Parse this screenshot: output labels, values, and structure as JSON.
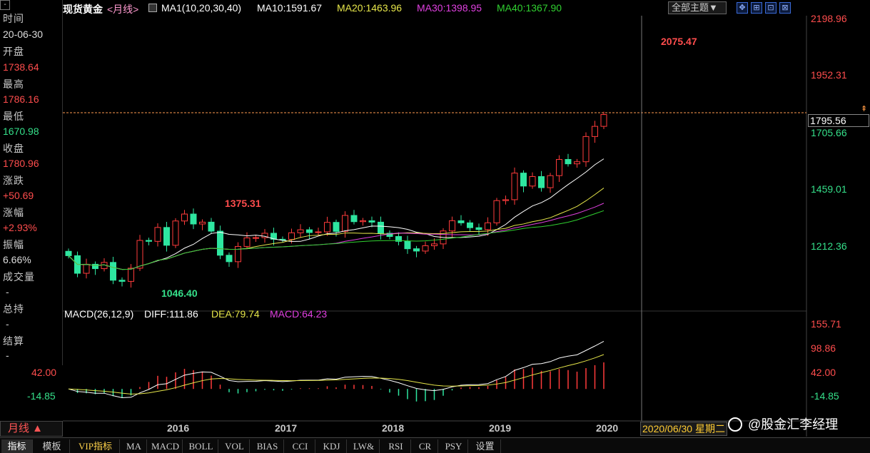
{
  "info_panel": {
    "minimize_glyph": "-",
    "time_label": "时间",
    "date": "20-06-30",
    "open_label": "开盘",
    "open": "1738.64",
    "high_label": "最高",
    "high": "1786.16",
    "low_label": "最低",
    "low": "1670.98",
    "close_label": "收盘",
    "close": "1780.96",
    "change_label": "涨跌",
    "change": "+50.69",
    "pct_label": "涨幅",
    "pct": "+2.93%",
    "amp_label": "振幅",
    "amp": "6.66%",
    "volume_label": "成交量",
    "volume": "-",
    "oi_label": "总持",
    "oi": "-",
    "settle_label": "结算",
    "settle": "-"
  },
  "header": {
    "symbol": "现货黄金",
    "period": "<月线>",
    "ma_params": "MA1(10,20,30,40)",
    "ma10": "MA10:1591.67",
    "ma20": "MA20:1463.96",
    "ma30": "MA30:1398.95",
    "ma40": "MA40:1367.90",
    "theme": "全部主题▼",
    "tools": [
      "✥",
      "⊞",
      "⊡",
      "⊠"
    ]
  },
  "price_axis": {
    "labels": [
      "2198.96",
      "1952.31",
      "1459.01",
      "1212.36"
    ],
    "current": "1795.56",
    "ma_hint": "1705.66"
  },
  "annotations": {
    "high_mark": "2075.47",
    "mid_mark": "1375.31",
    "low_mark": "1046.40"
  },
  "macd": {
    "header": "MACD(26,12,9)",
    "diff": "DIFF:111.86",
    "dea": "DEA:79.74",
    "macd": "MACD:64.23",
    "right_labels": [
      "155.71",
      "98.86",
      "42.00",
      "-14.85"
    ],
    "left_labels": [
      "42.00",
      "-14.85"
    ]
  },
  "years": [
    "2016",
    "2017",
    "2018",
    "2019",
    "2020"
  ],
  "date_tag": "2020/06/30 星期二",
  "period_button": "月线 ▲",
  "watermark": "@股金汇李经理",
  "tabs": [
    "指标",
    "模板",
    "VIP指标",
    "MA",
    "MACD",
    "BOLL",
    "VOL",
    "BIAS",
    "CCI",
    "KDJ",
    "LW&",
    "RSI",
    "CR",
    "PSY",
    "设置"
  ],
  "colors": {
    "up": "#ff3b3b",
    "down": "#2ee6a0",
    "ma10": "#ffffff",
    "ma20": "#e6e64a",
    "ma30": "#e040e0",
    "ma40": "#30d030",
    "axis_red": "#ff4d4d",
    "axis_green": "#35e08a"
  },
  "chart_data": {
    "type": "candlestick",
    "price_range": [
      1046.4,
      2198.96
    ],
    "price_ticks": [
      2198.96,
      1952.31,
      1459.01,
      1212.36
    ],
    "last_close": 1795.56,
    "period_high": 2075.47,
    "period_low": 1046.4,
    "marked_high": 1375.31,
    "macd_range": [
      -14.85,
      155.71
    ]
  }
}
